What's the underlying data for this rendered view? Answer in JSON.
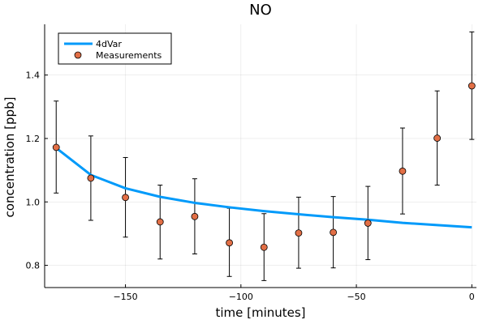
{
  "chart_data": {
    "type": "line",
    "title": "NO",
    "xlabel": "time [minutes]",
    "ylabel": "concentration [ppb]",
    "xlim": [
      -185,
      2
    ],
    "ylim": [
      0.73,
      1.56
    ],
    "x_ticks": [
      -150,
      -100,
      -50,
      0
    ],
    "x_tick_labels": [
      "−150",
      "−100",
      "−50",
      "0"
    ],
    "y_ticks": [
      0.8,
      1.0,
      1.2,
      1.4
    ],
    "y_tick_labels": [
      "0.8",
      "1.0",
      "1.2",
      "1.4"
    ],
    "grid": true,
    "legend_position": "top-left",
    "series": [
      {
        "name": "4dVar",
        "kind": "line",
        "color": "#009AFA",
        "x": [
          -180,
          -165,
          -150,
          -135,
          -120,
          -105,
          -90,
          -75,
          -60,
          -45,
          -30,
          -15,
          0
        ],
        "y": [
          1.17,
          1.085,
          1.043,
          1.016,
          0.997,
          0.983,
          0.971,
          0.961,
          0.952,
          0.944,
          0.934,
          0.927,
          0.92
        ]
      },
      {
        "name": "Measurements",
        "kind": "scatter",
        "color": "#E26F46",
        "x": [
          -180,
          -165,
          -150,
          -135,
          -120,
          -105,
          -90,
          -75,
          -60,
          -45,
          -30,
          -15,
          0
        ],
        "y": [
          1.172,
          1.075,
          1.014,
          0.937,
          0.954,
          0.871,
          0.857,
          0.902,
          0.904,
          0.933,
          1.097,
          1.201,
          1.366
        ],
        "err_low": [
          1.028,
          0.942,
          0.889,
          0.82,
          0.836,
          0.765,
          0.752,
          0.791,
          0.792,
          0.818,
          0.962,
          1.053,
          1.197
        ],
        "err_high": [
          1.318,
          1.208,
          1.14,
          1.053,
          1.073,
          0.98,
          0.963,
          1.015,
          1.017,
          1.049,
          1.233,
          1.35,
          1.536
        ]
      }
    ]
  }
}
